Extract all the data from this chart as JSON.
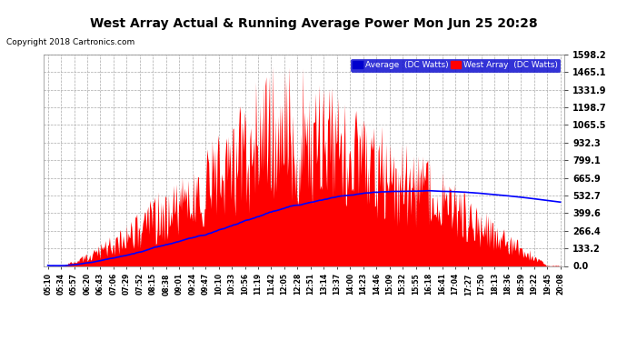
{
  "title": "West Array Actual & Running Average Power Mon Jun 25 20:28",
  "copyright": "Copyright 2018 Cartronics.com",
  "legend_avg": "Average  (DC Watts)",
  "legend_west": "West Array  (DC Watts)",
  "bg_color": "#ffffff",
  "plot_bg_color": "#ffffff",
  "grid_color": "#aaaaaa",
  "red_color": "#ff0000",
  "blue_color": "#0000ff",
  "title_color": "#000000",
  "label_color": "#000000",
  "copyright_color": "#000000",
  "yticks": [
    0.0,
    133.2,
    266.4,
    399.6,
    532.7,
    665.9,
    799.1,
    932.3,
    1065.5,
    1198.7,
    1331.9,
    1465.1,
    1598.2
  ],
  "ytick_labels": [
    "0.0",
    "133.2",
    "266.4",
    "399.6",
    "532.7",
    "665.9",
    "799.1",
    "932.3",
    "1065.5",
    "1198.7",
    "1331.9",
    "1465.1",
    "1598.2"
  ],
  "ylim": [
    0,
    1598.2
  ],
  "xtick_labels": [
    "05:10",
    "05:34",
    "05:57",
    "06:20",
    "06:43",
    "07:06",
    "07:29",
    "07:52",
    "08:15",
    "08:38",
    "09:01",
    "09:24",
    "09:47",
    "10:10",
    "10:33",
    "10:56",
    "11:19",
    "11:42",
    "12:05",
    "12:28",
    "12:51",
    "13:14",
    "13:37",
    "14:00",
    "14:23",
    "14:46",
    "15:09",
    "15:32",
    "15:55",
    "16:18",
    "16:41",
    "17:04",
    "17:27",
    "17:50",
    "18:13",
    "18:36",
    "18:59",
    "19:22",
    "19:45",
    "20:08"
  ]
}
